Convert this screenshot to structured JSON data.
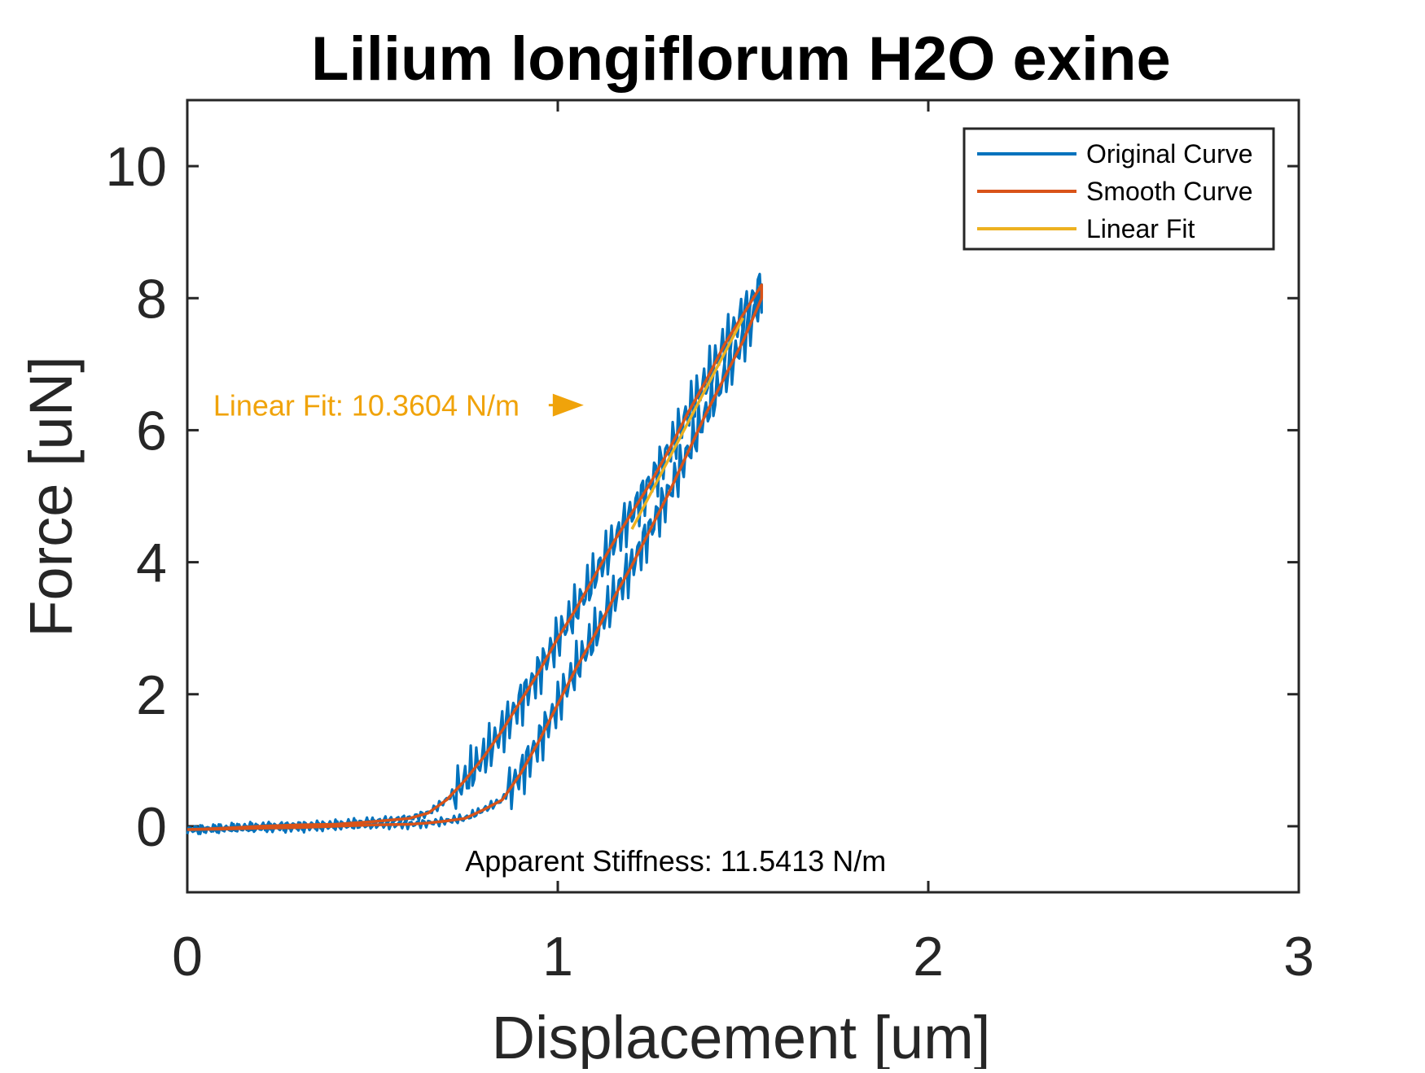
{
  "chart_data": {
    "type": "line",
    "title": "Lilium longiflorum H2O exine",
    "xlabel": "Displacement [um]",
    "ylabel": "Force [uN]",
    "xlim": [
      0,
      3
    ],
    "ylim": [
      -1,
      11
    ],
    "xticks": [
      "0",
      "1",
      "2",
      "3"
    ],
    "yticks": [
      "0",
      "2",
      "4",
      "6",
      "8",
      "10"
    ],
    "xtick_values": [
      0,
      1,
      2,
      3
    ],
    "ytick_values": [
      0,
      2,
      4,
      6,
      8,
      10
    ],
    "grid": false,
    "legend_position": "top-right",
    "series": [
      {
        "name": "Original Curve",
        "color": "#0072BD",
        "style": "noisy",
        "x": [
          0,
          0.1,
          0.2,
          0.3,
          0.4,
          0.5,
          0.6,
          0.65,
          0.7,
          0.75,
          0.8,
          0.85,
          0.9,
          0.95,
          1.0,
          1.05,
          1.1,
          1.15,
          1.2,
          1.25,
          1.3,
          1.35,
          1.4,
          1.45,
          1.5,
          1.55,
          1.55,
          1.5,
          1.45,
          1.4,
          1.35,
          1.3,
          1.25,
          1.2,
          1.15,
          1.1,
          1.05,
          1.0,
          0.95,
          0.9,
          0.85,
          0.8,
          0.75,
          0.7,
          0.65,
          0.6,
          0.5,
          0.4,
          0.3,
          0.2,
          0.1,
          0
        ],
        "y": [
          -0.05,
          -0.03,
          0.0,
          0.02,
          0.03,
          0.07,
          0.12,
          0.2,
          0.4,
          0.7,
          1.05,
          1.45,
          1.9,
          2.35,
          2.85,
          3.3,
          3.8,
          4.3,
          4.75,
          5.2,
          5.7,
          6.25,
          6.75,
          7.3,
          7.75,
          8.2,
          8.0,
          7.35,
          6.8,
          6.25,
          5.65,
          5.05,
          4.5,
          3.95,
          3.45,
          2.9,
          2.4,
          1.85,
          1.3,
          0.8,
          0.4,
          0.25,
          0.12,
          0.08,
          0.05,
          0.03,
          0.02,
          0.0,
          -0.02,
          -0.03,
          -0.04,
          -0.05
        ]
      },
      {
        "name": "Smooth Curve",
        "color": "#D95319",
        "style": "smooth",
        "x": [
          0,
          0.1,
          0.2,
          0.3,
          0.4,
          0.5,
          0.6,
          0.65,
          0.7,
          0.75,
          0.8,
          0.85,
          0.9,
          0.95,
          1.0,
          1.05,
          1.1,
          1.15,
          1.2,
          1.25,
          1.3,
          1.35,
          1.4,
          1.45,
          1.5,
          1.55,
          1.55,
          1.5,
          1.45,
          1.4,
          1.35,
          1.3,
          1.25,
          1.2,
          1.15,
          1.1,
          1.05,
          1.0,
          0.95,
          0.9,
          0.85,
          0.8,
          0.75,
          0.7,
          0.65,
          0.6,
          0.5,
          0.4,
          0.3,
          0.2,
          0.1,
          0
        ],
        "y": [
          -0.05,
          -0.03,
          0.0,
          0.02,
          0.03,
          0.07,
          0.12,
          0.2,
          0.4,
          0.7,
          1.05,
          1.45,
          1.9,
          2.35,
          2.85,
          3.3,
          3.8,
          4.3,
          4.75,
          5.2,
          5.7,
          6.25,
          6.75,
          7.3,
          7.75,
          8.2,
          8.0,
          7.35,
          6.8,
          6.25,
          5.65,
          5.05,
          4.5,
          3.95,
          3.45,
          2.9,
          2.4,
          1.85,
          1.3,
          0.8,
          0.4,
          0.25,
          0.12,
          0.08,
          0.05,
          0.03,
          0.02,
          0.0,
          -0.02,
          -0.03,
          -0.04,
          -0.05
        ]
      },
      {
        "name": "Linear Fit",
        "color": "#EDB120",
        "style": "straight",
        "x": [
          1.2,
          1.5
        ],
        "y": [
          4.5,
          7.7
        ]
      }
    ],
    "annotations": [
      {
        "text": "Linear Fit: 10.3604 N/m",
        "color": "#F0A30A",
        "x": 0.07,
        "y": 6.38,
        "arrow_to_x": 1.07
      },
      {
        "text": "Apparent Stiffness: 11.5413 N/m",
        "color": "#000000",
        "x": 0.75,
        "y": -0.52
      }
    ]
  }
}
